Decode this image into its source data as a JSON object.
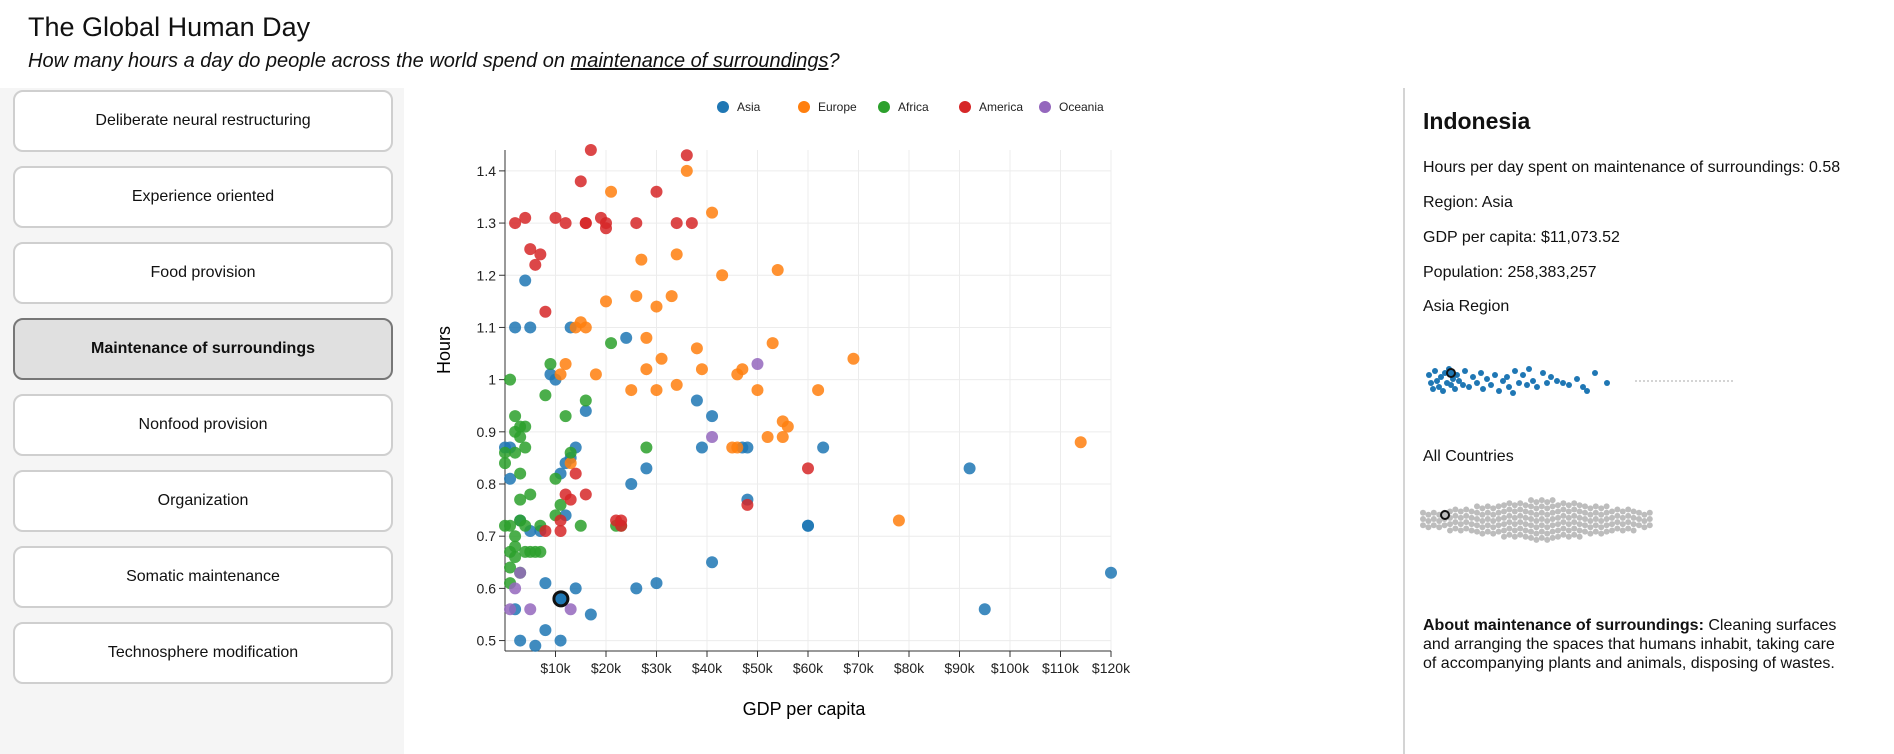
{
  "header": {
    "title": "The Global Human Day",
    "subtitle_prefix": "How many hours a day do people across the world spend on ",
    "subtitle_link": "maintenance of surroundings",
    "subtitle_suffix": "?"
  },
  "categories": [
    {
      "label": "Deliberate neural restructuring",
      "active": false
    },
    {
      "label": "Experience oriented",
      "active": false
    },
    {
      "label": "Food provision",
      "active": false
    },
    {
      "label": "Maintenance of surroundings",
      "active": true
    },
    {
      "label": "Nonfood provision",
      "active": false
    },
    {
      "label": "Organization",
      "active": false
    },
    {
      "label": "Somatic maintenance",
      "active": false
    },
    {
      "label": "Technosphere modification",
      "active": false
    }
  ],
  "chart_data": {
    "type": "scatter",
    "xlabel": "GDP per capita",
    "ylabel": "Hours",
    "xlim": [
      0,
      120
    ],
    "ylim": [
      0.48,
      1.44
    ],
    "x_ticks": [
      10,
      20,
      30,
      40,
      50,
      60,
      70,
      80,
      90,
      100,
      110,
      120
    ],
    "x_tick_labels": [
      "$10k",
      "$20k",
      "$30k",
      "$40k",
      "$50k",
      "$60k",
      "$70k",
      "$80k",
      "$90k",
      "$100k",
      "$110k",
      "$120k"
    ],
    "y_ticks": [
      0.5,
      0.6,
      0.7,
      0.8,
      0.9,
      1.0,
      1.1,
      1.2,
      1.3,
      1.4
    ],
    "y_tick_labels": [
      "0.5",
      "0.6",
      "0.7",
      "0.8",
      "0.9",
      "1",
      "1.1",
      "1.2",
      "1.3",
      "1.4"
    ],
    "grid": true,
    "legend_position": "top",
    "highlight": {
      "name": "Indonesia",
      "x": 11.07,
      "y": 0.58
    },
    "series": [
      {
        "name": "Asia",
        "color": "#1f77b4",
        "points": [
          [
            0,
            0.87
          ],
          [
            1,
            0.87
          ],
          [
            2,
            1.1
          ],
          [
            4,
            1.19
          ],
          [
            5,
            1.1
          ],
          [
            8,
            0.61
          ],
          [
            9,
            1.01
          ],
          [
            10,
            1.0
          ],
          [
            11,
            0.82
          ],
          [
            12,
            0.84
          ],
          [
            13,
            0.85
          ],
          [
            14,
            0.87
          ],
          [
            13,
            1.1
          ],
          [
            16,
            0.94
          ],
          [
            14,
            0.6
          ],
          [
            17,
            0.55
          ],
          [
            8,
            0.52
          ],
          [
            6,
            0.49
          ],
          [
            11,
            0.5
          ],
          [
            12,
            0.74
          ],
          [
            24,
            1.08
          ],
          [
            25,
            0.8
          ],
          [
            26,
            0.6
          ],
          [
            28,
            0.83
          ],
          [
            30,
            0.61
          ],
          [
            38,
            0.96
          ],
          [
            39,
            0.87
          ],
          [
            41,
            0.93
          ],
          [
            41,
            0.65
          ],
          [
            47,
            0.87
          ],
          [
            48,
            0.87
          ],
          [
            48,
            0.77
          ],
          [
            60,
            0.72
          ],
          [
            60,
            0.72
          ],
          [
            63,
            0.87
          ],
          [
            92,
            0.83
          ],
          [
            95,
            0.56
          ],
          [
            120,
            0.63
          ],
          [
            3,
            0.73
          ],
          [
            5,
            0.71
          ],
          [
            7,
            0.71
          ],
          [
            2,
            0.56
          ],
          [
            3,
            0.5
          ],
          [
            1,
            0.81
          ]
        ]
      },
      {
        "name": "Europe",
        "color": "#ff7f0e",
        "points": [
          [
            11,
            1.01
          ],
          [
            12,
            1.03
          ],
          [
            13,
            0.84
          ],
          [
            14,
            1.1
          ],
          [
            15,
            1.11
          ],
          [
            16,
            1.1
          ],
          [
            18,
            1.01
          ],
          [
            20,
            1.15
          ],
          [
            21,
            1.36
          ],
          [
            25,
            0.98
          ],
          [
            26,
            1.16
          ],
          [
            27,
            1.23
          ],
          [
            28,
            1.08
          ],
          [
            28,
            1.02
          ],
          [
            30,
            1.14
          ],
          [
            30,
            0.98
          ],
          [
            31,
            1.04
          ],
          [
            33,
            1.16
          ],
          [
            34,
            1.24
          ],
          [
            34,
            0.99
          ],
          [
            36,
            1.4
          ],
          [
            38,
            1.06
          ],
          [
            39,
            1.02
          ],
          [
            41,
            1.32
          ],
          [
            43,
            1.2
          ],
          [
            45,
            0.87
          ],
          [
            46,
            1.01
          ],
          [
            47,
            1.02
          ],
          [
            50,
            0.98
          ],
          [
            52,
            0.89
          ],
          [
            53,
            1.07
          ],
          [
            54,
            1.21
          ],
          [
            55,
            0.92
          ],
          [
            56,
            0.91
          ],
          [
            55,
            0.89
          ],
          [
            62,
            0.98
          ],
          [
            69,
            1.04
          ],
          [
            78,
            0.73
          ],
          [
            114,
            0.88
          ],
          [
            46,
            0.87
          ]
        ]
      },
      {
        "name": "Africa",
        "color": "#2ca02c",
        "points": [
          [
            0,
            0.84
          ],
          [
            0,
            0.72
          ],
          [
            1,
            0.72
          ],
          [
            1,
            0.67
          ],
          [
            1,
            0.64
          ],
          [
            1,
            0.61
          ],
          [
            2,
            0.93
          ],
          [
            2,
            0.9
          ],
          [
            2,
            0.86
          ],
          [
            2,
            0.7
          ],
          [
            2,
            0.68
          ],
          [
            3,
            0.91
          ],
          [
            3,
            0.89
          ],
          [
            3,
            0.82
          ],
          [
            3,
            0.77
          ],
          [
            3,
            0.73
          ],
          [
            3,
            0.63
          ],
          [
            4,
            0.91
          ],
          [
            4,
            0.87
          ],
          [
            4,
            0.72
          ],
          [
            4,
            0.67
          ],
          [
            5,
            0.78
          ],
          [
            5,
            0.67
          ],
          [
            6,
            0.67
          ],
          [
            7,
            0.72
          ],
          [
            7,
            0.67
          ],
          [
            8,
            0.97
          ],
          [
            9,
            1.03
          ],
          [
            10,
            0.81
          ],
          [
            10,
            0.74
          ],
          [
            11,
            0.76
          ],
          [
            12,
            0.93
          ],
          [
            13,
            0.86
          ],
          [
            15,
            0.72
          ],
          [
            16,
            0.96
          ],
          [
            21,
            1.07
          ],
          [
            22,
            0.72
          ],
          [
            23,
            0.72
          ],
          [
            28,
            0.87
          ],
          [
            1,
            1.0
          ],
          [
            2,
            0.66
          ],
          [
            0,
            0.86
          ]
        ]
      },
      {
        "name": "America",
        "color": "#d62728",
        "points": [
          [
            2,
            1.3
          ],
          [
            4,
            1.31
          ],
          [
            5,
            1.25
          ],
          [
            6,
            1.22
          ],
          [
            7,
            1.24
          ],
          [
            8,
            1.13
          ],
          [
            8,
            0.71
          ],
          [
            10,
            1.31
          ],
          [
            11,
            0.71
          ],
          [
            11,
            0.73
          ],
          [
            12,
            1.3
          ],
          [
            12,
            0.78
          ],
          [
            13,
            0.77
          ],
          [
            14,
            0.82
          ],
          [
            15,
            1.38
          ],
          [
            16,
            1.3
          ],
          [
            16,
            1.3
          ],
          [
            16,
            0.78
          ],
          [
            17,
            1.44
          ],
          [
            19,
            1.31
          ],
          [
            20,
            1.3
          ],
          [
            20,
            1.29
          ],
          [
            22,
            0.73
          ],
          [
            23,
            0.72
          ],
          [
            23,
            0.73
          ],
          [
            26,
            1.3
          ],
          [
            30,
            1.36
          ],
          [
            34,
            1.3
          ],
          [
            36,
            1.43
          ],
          [
            37,
            1.3
          ],
          [
            48,
            0.76
          ],
          [
            60,
            0.83
          ]
        ]
      },
      {
        "name": "Oceania",
        "color": "#9467bd",
        "points": [
          [
            2,
            0.6
          ],
          [
            3,
            0.63
          ],
          [
            1,
            0.56
          ],
          [
            5,
            0.56
          ],
          [
            13,
            0.56
          ],
          [
            41,
            0.89
          ],
          [
            50,
            1.03
          ]
        ]
      }
    ]
  },
  "detail": {
    "country": "Indonesia",
    "hours_line": "Hours per day spent on maintenance of surroundings: 0.58",
    "region_line": "Region: Asia",
    "gdp_line": "GDP per capita: $11,073.52",
    "population_line": "Population: 258,383,257",
    "asia_label": "Asia Region",
    "all_label": "All Countries",
    "about_label": "About maintenance of surroundings:",
    "about_text": " Cleaning surfaces and arranging the spaces that humans inhabit, taking care of accompanying plants and animals, disposing of wastes.",
    "asia_color": "#1f77b4",
    "all_color": "#bdbdbd"
  }
}
